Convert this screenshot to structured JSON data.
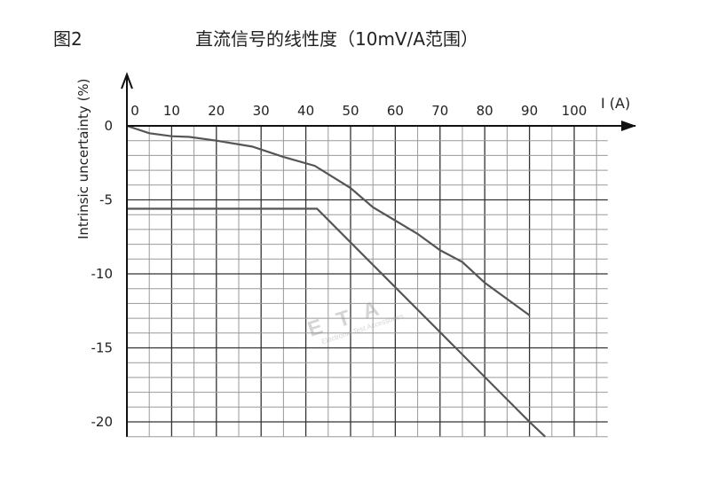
{
  "figure_label": "图2",
  "chart_data": {
    "type": "line",
    "title": "直流信号的线性度（10mV/A范围）",
    "xlabel": "I (A)",
    "ylabel": "Intrinsic uncertainty (%)",
    "xlim": [
      0,
      107.5
    ],
    "ylim": [
      -21,
      0
    ],
    "x_ticks": [
      0,
      10,
      20,
      30,
      40,
      50,
      60,
      70,
      80,
      90,
      100
    ],
    "y_ticks": [
      0,
      -5,
      -10,
      -15,
      -20
    ],
    "grid": true,
    "grid_minor_x": 5,
    "grid_minor_y": 1,
    "series": [
      {
        "x": [
          0,
          5,
          10,
          14,
          20,
          28,
          35,
          42,
          50,
          55,
          60,
          65,
          70,
          75,
          80,
          90
        ],
        "y": [
          0,
          -0.5,
          -0.7,
          -0.75,
          -1.0,
          -1.4,
          -2.1,
          -2.7,
          -4.2,
          -5.5,
          -6.4,
          -7.3,
          -8.4,
          -9.2,
          -10.6,
          -12.8
        ]
      },
      {
        "x": [
          0,
          42.5,
          90,
          93.5
        ],
        "y": [
          -5.6,
          -5.6,
          -20,
          -21
        ]
      }
    ],
    "line_color": "#555555",
    "watermark": {
      "text": "ETA",
      "subtext": "Electronic Test Accessories"
    }
  }
}
